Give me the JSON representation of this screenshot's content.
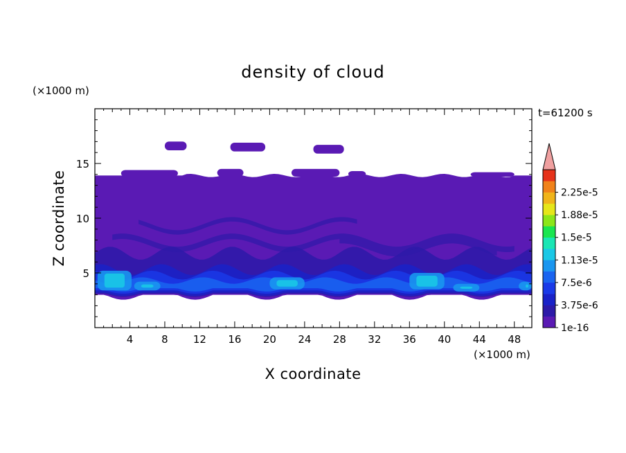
{
  "chart_data": {
    "type": "heatmap",
    "title": "density of cloud",
    "xlabel": "X coordinate",
    "ylabel": "Z coordinate",
    "x_unit": "(×1000 m)",
    "y_unit": "(×1000 m)",
    "time_label": "t=61200 s",
    "xlim": [
      0,
      50
    ],
    "ylim": [
      0,
      20
    ],
    "x_ticks": [
      4,
      8,
      12,
      16,
      20,
      24,
      28,
      32,
      36,
      40,
      44,
      48
    ],
    "y_ticks": [
      5,
      10,
      15
    ],
    "colorbar": {
      "labels": [
        "1e-16",
        "3.75e-6",
        "7.5e-6",
        "1.13e-5",
        "1.5e-5",
        "1.88e-5",
        "2.25e-5"
      ],
      "levels": [
        1e-16,
        1.875e-06,
        3.75e-06,
        5.625e-06,
        7.5e-06,
        9.375e-06,
        1.13e-05,
        1.31e-05,
        1.5e-05,
        1.69e-05,
        1.88e-05,
        2.06e-05,
        2.25e-05,
        2.44e-05
      ],
      "colors": [
        "#5a1ab4",
        "#2d1aa8",
        "#1a22c8",
        "#1a3ae8",
        "#1a64f0",
        "#1a96f0",
        "#1ac8e6",
        "#1ae6b4",
        "#1ae650",
        "#8ce61a",
        "#e6e61a",
        "#f0b41a",
        "#f0821a",
        "#e6321a"
      ],
      "extend_color": "#f0a0a0"
    },
    "cloud_layer": {
      "base_z": 3.0,
      "top_z": 13.9,
      "dominant_value": 1e-16,
      "max_region_z": [
        3.0,
        5.5
      ]
    }
  }
}
